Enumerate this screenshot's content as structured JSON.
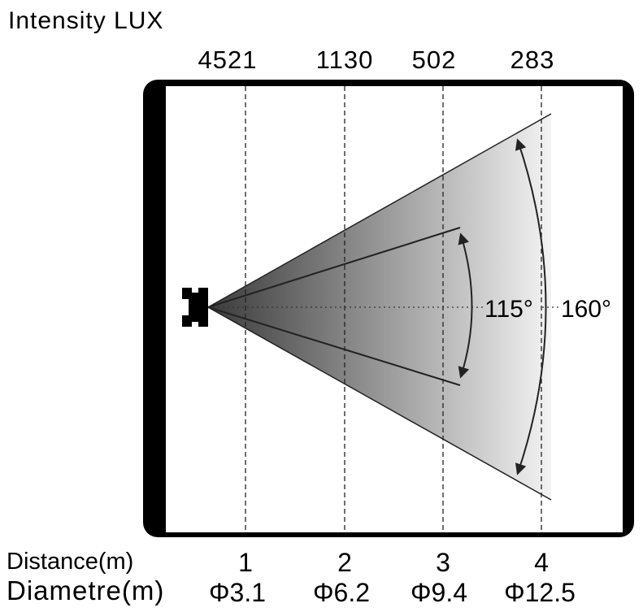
{
  "title": "Intensity LUX",
  "angles": {
    "inner": "115°",
    "outer": "160°"
  },
  "labels": {
    "distance": "Distance(m)",
    "diameter": "Diametre(m)"
  },
  "measurements": [
    {
      "lux": "4521",
      "distance": "1",
      "diameter": "Φ3.1"
    },
    {
      "lux": "1130",
      "distance": "2",
      "diameter": "Φ6.2"
    },
    {
      "lux": "502",
      "distance": "3",
      "diameter": "Φ9.4"
    },
    {
      "lux": "283",
      "distance": "4",
      "diameter": "Φ12.5"
    }
  ],
  "colors": {
    "frame": "#000000",
    "beam_dark": "#3a3a3a",
    "beam_light": "#f4f4f4",
    "line": "#222222"
  }
}
